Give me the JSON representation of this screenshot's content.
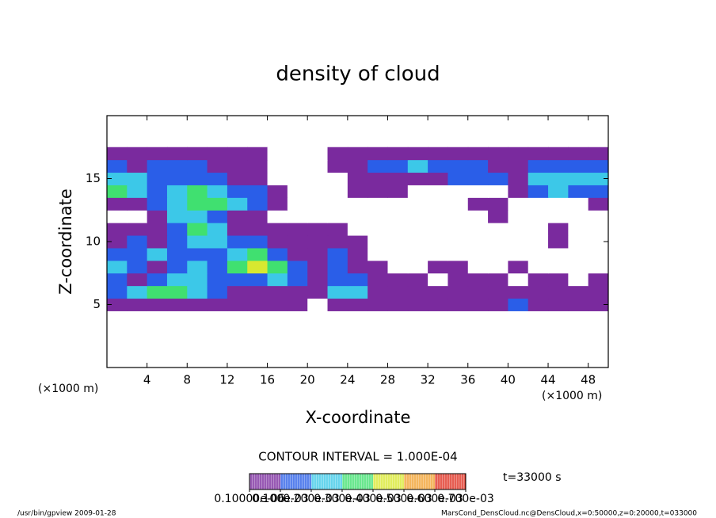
{
  "chart_data": {
    "type": "contour",
    "title": "density of cloud",
    "x_label": "X-coordinate",
    "y_label": "Z-coordinate",
    "x_unit": "(×1000 m)",
    "x_unit_right": "(×1000 m)",
    "xlim": [
      0,
      50
    ],
    "xticks": [
      4,
      8,
      12,
      16,
      20,
      24,
      28,
      32,
      36,
      40,
      44,
      48
    ],
    "ylim": [
      0,
      20
    ],
    "yticks": [
      5,
      10,
      15
    ],
    "x": [
      1,
      3,
      5,
      7,
      9,
      11,
      13,
      15,
      17,
      19,
      21,
      23,
      25,
      27,
      29,
      31,
      33,
      35,
      37,
      39,
      41,
      43,
      45,
      47,
      49
    ],
    "z": [
      5,
      6,
      7,
      8,
      9,
      10,
      11,
      12,
      13,
      14,
      15,
      16,
      17
    ],
    "values": [
      [
        3e-05,
        3e-05,
        3e-05,
        3e-05,
        3e-05,
        3e-05,
        3e-05,
        3e-05,
        3e-05,
        3e-05,
        0,
        3e-05,
        3e-05,
        3e-05,
        3e-05,
        3e-05,
        3e-05,
        3e-05,
        3e-05,
        3e-05,
        0.00012,
        3e-05,
        3e-05,
        3e-05,
        3e-05
      ],
      [
        0.00012,
        0.00022,
        0.00032,
        0.00032,
        0.00022,
        0.00012,
        3e-05,
        3e-05,
        3e-05,
        3e-05,
        3e-05,
        0.00022,
        0.00022,
        3e-05,
        3e-05,
        3e-05,
        3e-05,
        3e-05,
        3e-05,
        3e-05,
        3e-05,
        3e-05,
        3e-05,
        3e-05,
        3e-05
      ],
      [
        0.00012,
        3e-05,
        0.00012,
        0.00022,
        0.00022,
        0.00012,
        0.00012,
        0.00012,
        0.00022,
        0.00012,
        3e-05,
        0.00012,
        0.00012,
        3e-05,
        3e-05,
        3e-05,
        0,
        3e-05,
        3e-05,
        3e-05,
        0,
        3e-05,
        3e-05,
        0,
        3e-05
      ],
      [
        0.00022,
        0.00012,
        3e-05,
        0.00012,
        0.00022,
        0.00012,
        0.00032,
        0.00042,
        0.00032,
        0.00012,
        3e-05,
        0.00012,
        3e-05,
        3e-05,
        0,
        0,
        3e-05,
        3e-05,
        0,
        0,
        3e-05,
        0,
        0,
        0,
        0
      ],
      [
        0.00012,
        0.00012,
        0.00022,
        0.00012,
        0.00012,
        0.00012,
        0.00022,
        0.00032,
        0.00012,
        3e-05,
        3e-05,
        0.00012,
        3e-05,
        0,
        0,
        0,
        0,
        0,
        0,
        0,
        0,
        0,
        0,
        0,
        0
      ],
      [
        3e-05,
        0.00012,
        3e-05,
        0.00012,
        0.00022,
        0.00022,
        0.00012,
        0.00012,
        3e-05,
        3e-05,
        3e-05,
        3e-05,
        3e-05,
        0,
        0,
        0,
        0,
        0,
        0,
        0,
        0,
        0,
        3e-05,
        0,
        0
      ],
      [
        3e-05,
        3e-05,
        3e-05,
        0.00012,
        0.00032,
        0.00022,
        3e-05,
        3e-05,
        3e-05,
        3e-05,
        3e-05,
        3e-05,
        0,
        0,
        0,
        0,
        0,
        0,
        0,
        0,
        0,
        0,
        3e-05,
        0,
        0
      ],
      [
        0,
        0,
        3e-05,
        0.00022,
        0.00022,
        0.00012,
        3e-05,
        3e-05,
        0,
        0,
        0,
        0,
        0,
        0,
        0,
        0,
        0,
        0,
        0,
        3e-05,
        0,
        0,
        0,
        0,
        0
      ],
      [
        3e-05,
        3e-05,
        0.00012,
        0.00022,
        0.00032,
        0.00032,
        0.00022,
        0.00012,
        3e-05,
        0,
        0,
        0,
        0,
        0,
        0,
        0,
        0,
        0,
        3e-05,
        3e-05,
        0,
        0,
        0,
        0,
        3e-05
      ],
      [
        0.00032,
        0.00022,
        0.00012,
        0.00022,
        0.00032,
        0.00022,
        0.00012,
        0.00012,
        3e-05,
        0,
        0,
        0,
        3e-05,
        3e-05,
        3e-05,
        0,
        0,
        0,
        0,
        0,
        3e-05,
        0.00012,
        0.00022,
        0.00012,
        0.00012
      ],
      [
        0.00022,
        0.00022,
        0.00012,
        0.00012,
        0.00012,
        0.00012,
        3e-05,
        3e-05,
        0,
        0,
        0,
        0,
        3e-05,
        3e-05,
        3e-05,
        3e-05,
        3e-05,
        0.00012,
        0.00012,
        0.00012,
        3e-05,
        0.00022,
        0.00022,
        0.00022,
        0.00022
      ],
      [
        0.00012,
        3e-05,
        0.00012,
        0.00012,
        0.00012,
        3e-05,
        3e-05,
        3e-05,
        0,
        0,
        0,
        3e-05,
        3e-05,
        0.00012,
        0.00012,
        0.00022,
        0.00012,
        0.00012,
        0.00012,
        3e-05,
        3e-05,
        0.00012,
        0.00012,
        0.00012,
        0.00012
      ],
      [
        3e-05,
        3e-05,
        3e-05,
        3e-05,
        3e-05,
        3e-05,
        3e-05,
        3e-05,
        0,
        0,
        0,
        3e-05,
        3e-05,
        3e-05,
        3e-05,
        3e-05,
        3e-05,
        3e-05,
        3e-05,
        3e-05,
        3e-05,
        3e-05,
        3e-05,
        3e-05,
        3e-05
      ]
    ],
    "colorbar": {
      "ticks": [
        {
          "value": 1e-07,
          "label": "0.10000e-06"
        },
        {
          "value": 0.0001,
          "label": "0.100e-03"
        },
        {
          "value": 0.0002,
          "label": "0.200e-03"
        },
        {
          "value": 0.0003,
          "label": "0.300e-03"
        },
        {
          "value": 0.0004,
          "label": "0.400e-03"
        },
        {
          "value": 0.0005,
          "label": "0.500e-03"
        },
        {
          "value": 0.0006,
          "label": "0.600e-03"
        },
        {
          "value": 0.0007,
          "label": "0.700e-03"
        }
      ],
      "colors": [
        "#7a2a9e",
        "#2a5ee8",
        "#3cc8e8",
        "#40e070",
        "#d8e830",
        "#f0a030",
        "#e03020"
      ]
    },
    "contour_note": "CONTOUR INTERVAL = 1.000E-04",
    "time_label": "t=33000 s",
    "footer_left": "/usr/bin/gpview  2009-01-28",
    "footer_right": "MarsCond_DensCloud.nc@DensCloud,x=0:50000,z=0:20000,t=033000"
  }
}
